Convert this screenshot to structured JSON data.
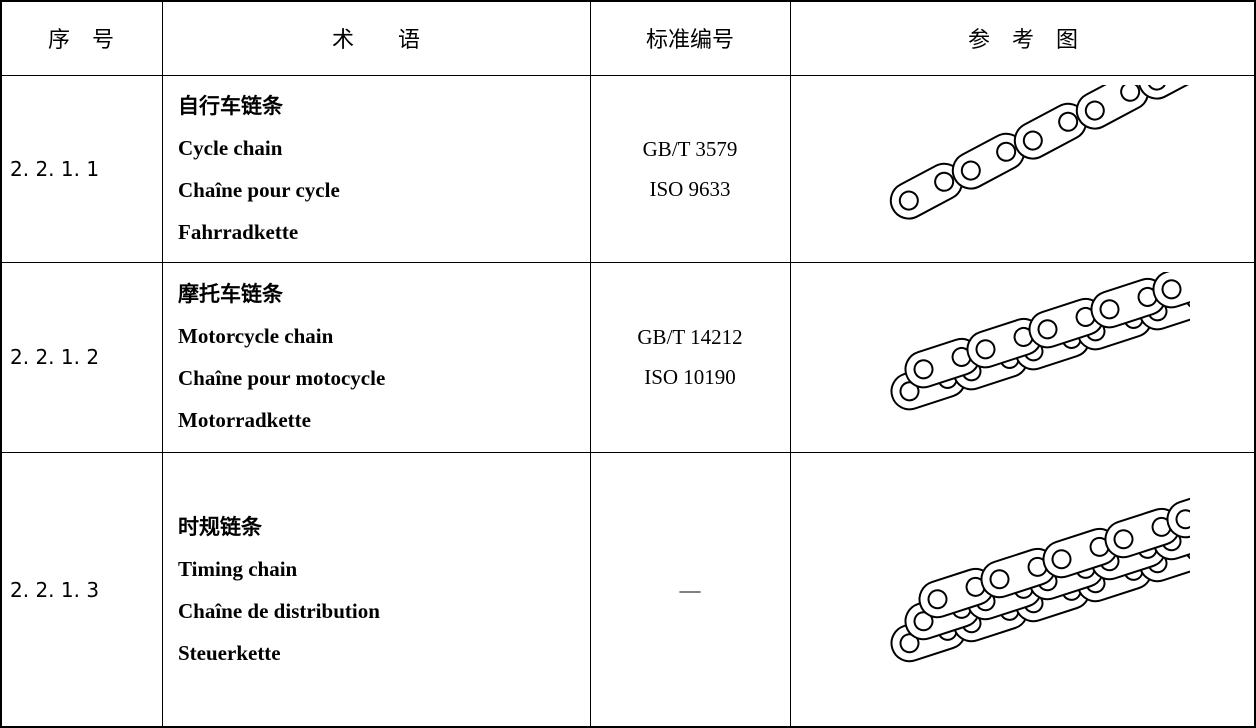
{
  "table": {
    "header": [
      "序　号",
      "术　　语",
      "标准编号",
      "参　考　图"
    ],
    "rows": [
      {
        "number": "2. 2. 1. 1",
        "terms": [
          "自行车链条",
          "Cycle chain",
          "Chaîne pour cycle",
          "Fahrradkette"
        ],
        "standards": [
          "GB/T 3579",
          "ISO 9633"
        ]
      },
      {
        "number": "2. 2. 1. 2",
        "terms": [
          "摩托车链条",
          "Motorcycle chain",
          "Chaîne pour motocycle",
          "Motorradkette"
        ],
        "standards": [
          "GB/T 14212",
          "ISO 10190"
        ]
      },
      {
        "number": "2. 2. 1. 3",
        "terms": [
          "时规链条",
          "Timing chain",
          "Chaîne de distribution",
          "Steuerkette"
        ],
        "standards": [
          "—"
        ]
      }
    ]
  }
}
